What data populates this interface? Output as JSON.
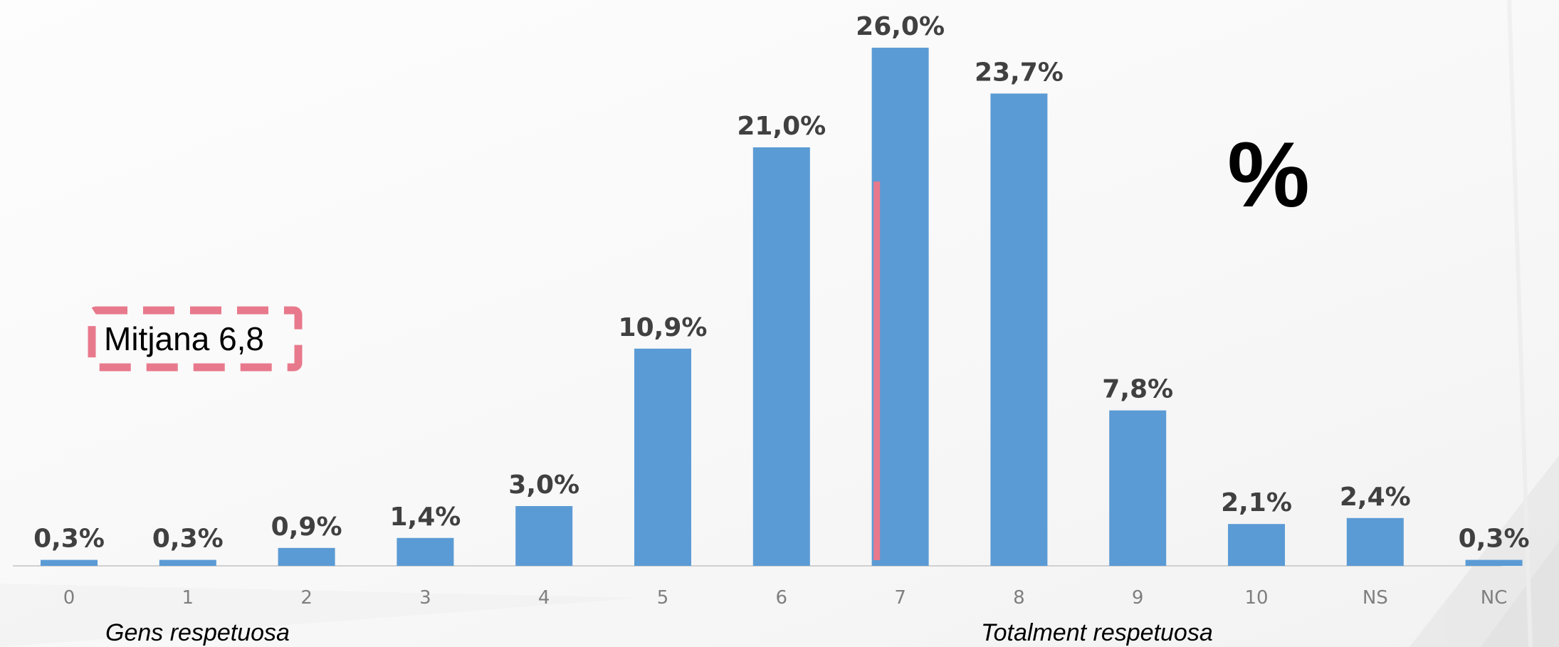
{
  "chart_data": {
    "type": "bar",
    "categories": [
      "0",
      "1",
      "2",
      "3",
      "4",
      "5",
      "6",
      "7",
      "8",
      "9",
      "10",
      "NS",
      "NC"
    ],
    "values": [
      0.3,
      0.3,
      0.9,
      1.4,
      3.0,
      10.9,
      21.0,
      26.0,
      23.7,
      7.8,
      2.1,
      2.4,
      0.3
    ],
    "data_labels": [
      "0,3%",
      "0,3%",
      "0,9%",
      "1,4%",
      "3,0%",
      "10,9%",
      "21,0%",
      "26,0%",
      "23,7%",
      "7,8%",
      "2,1%",
      "2,4%",
      "0,3%"
    ],
    "ylim": [
      0,
      26
    ],
    "bar_color": "#5b9bd5",
    "mean_line_color": "#e8798c",
    "mean_value": 6.8,
    "unit_symbol": "%",
    "grid": false,
    "annotations": {
      "mean_box": "Mitjana 6,8",
      "left_axis_note": "Gens respetuosa",
      "right_axis_note": "Totalment respetuosa"
    }
  }
}
